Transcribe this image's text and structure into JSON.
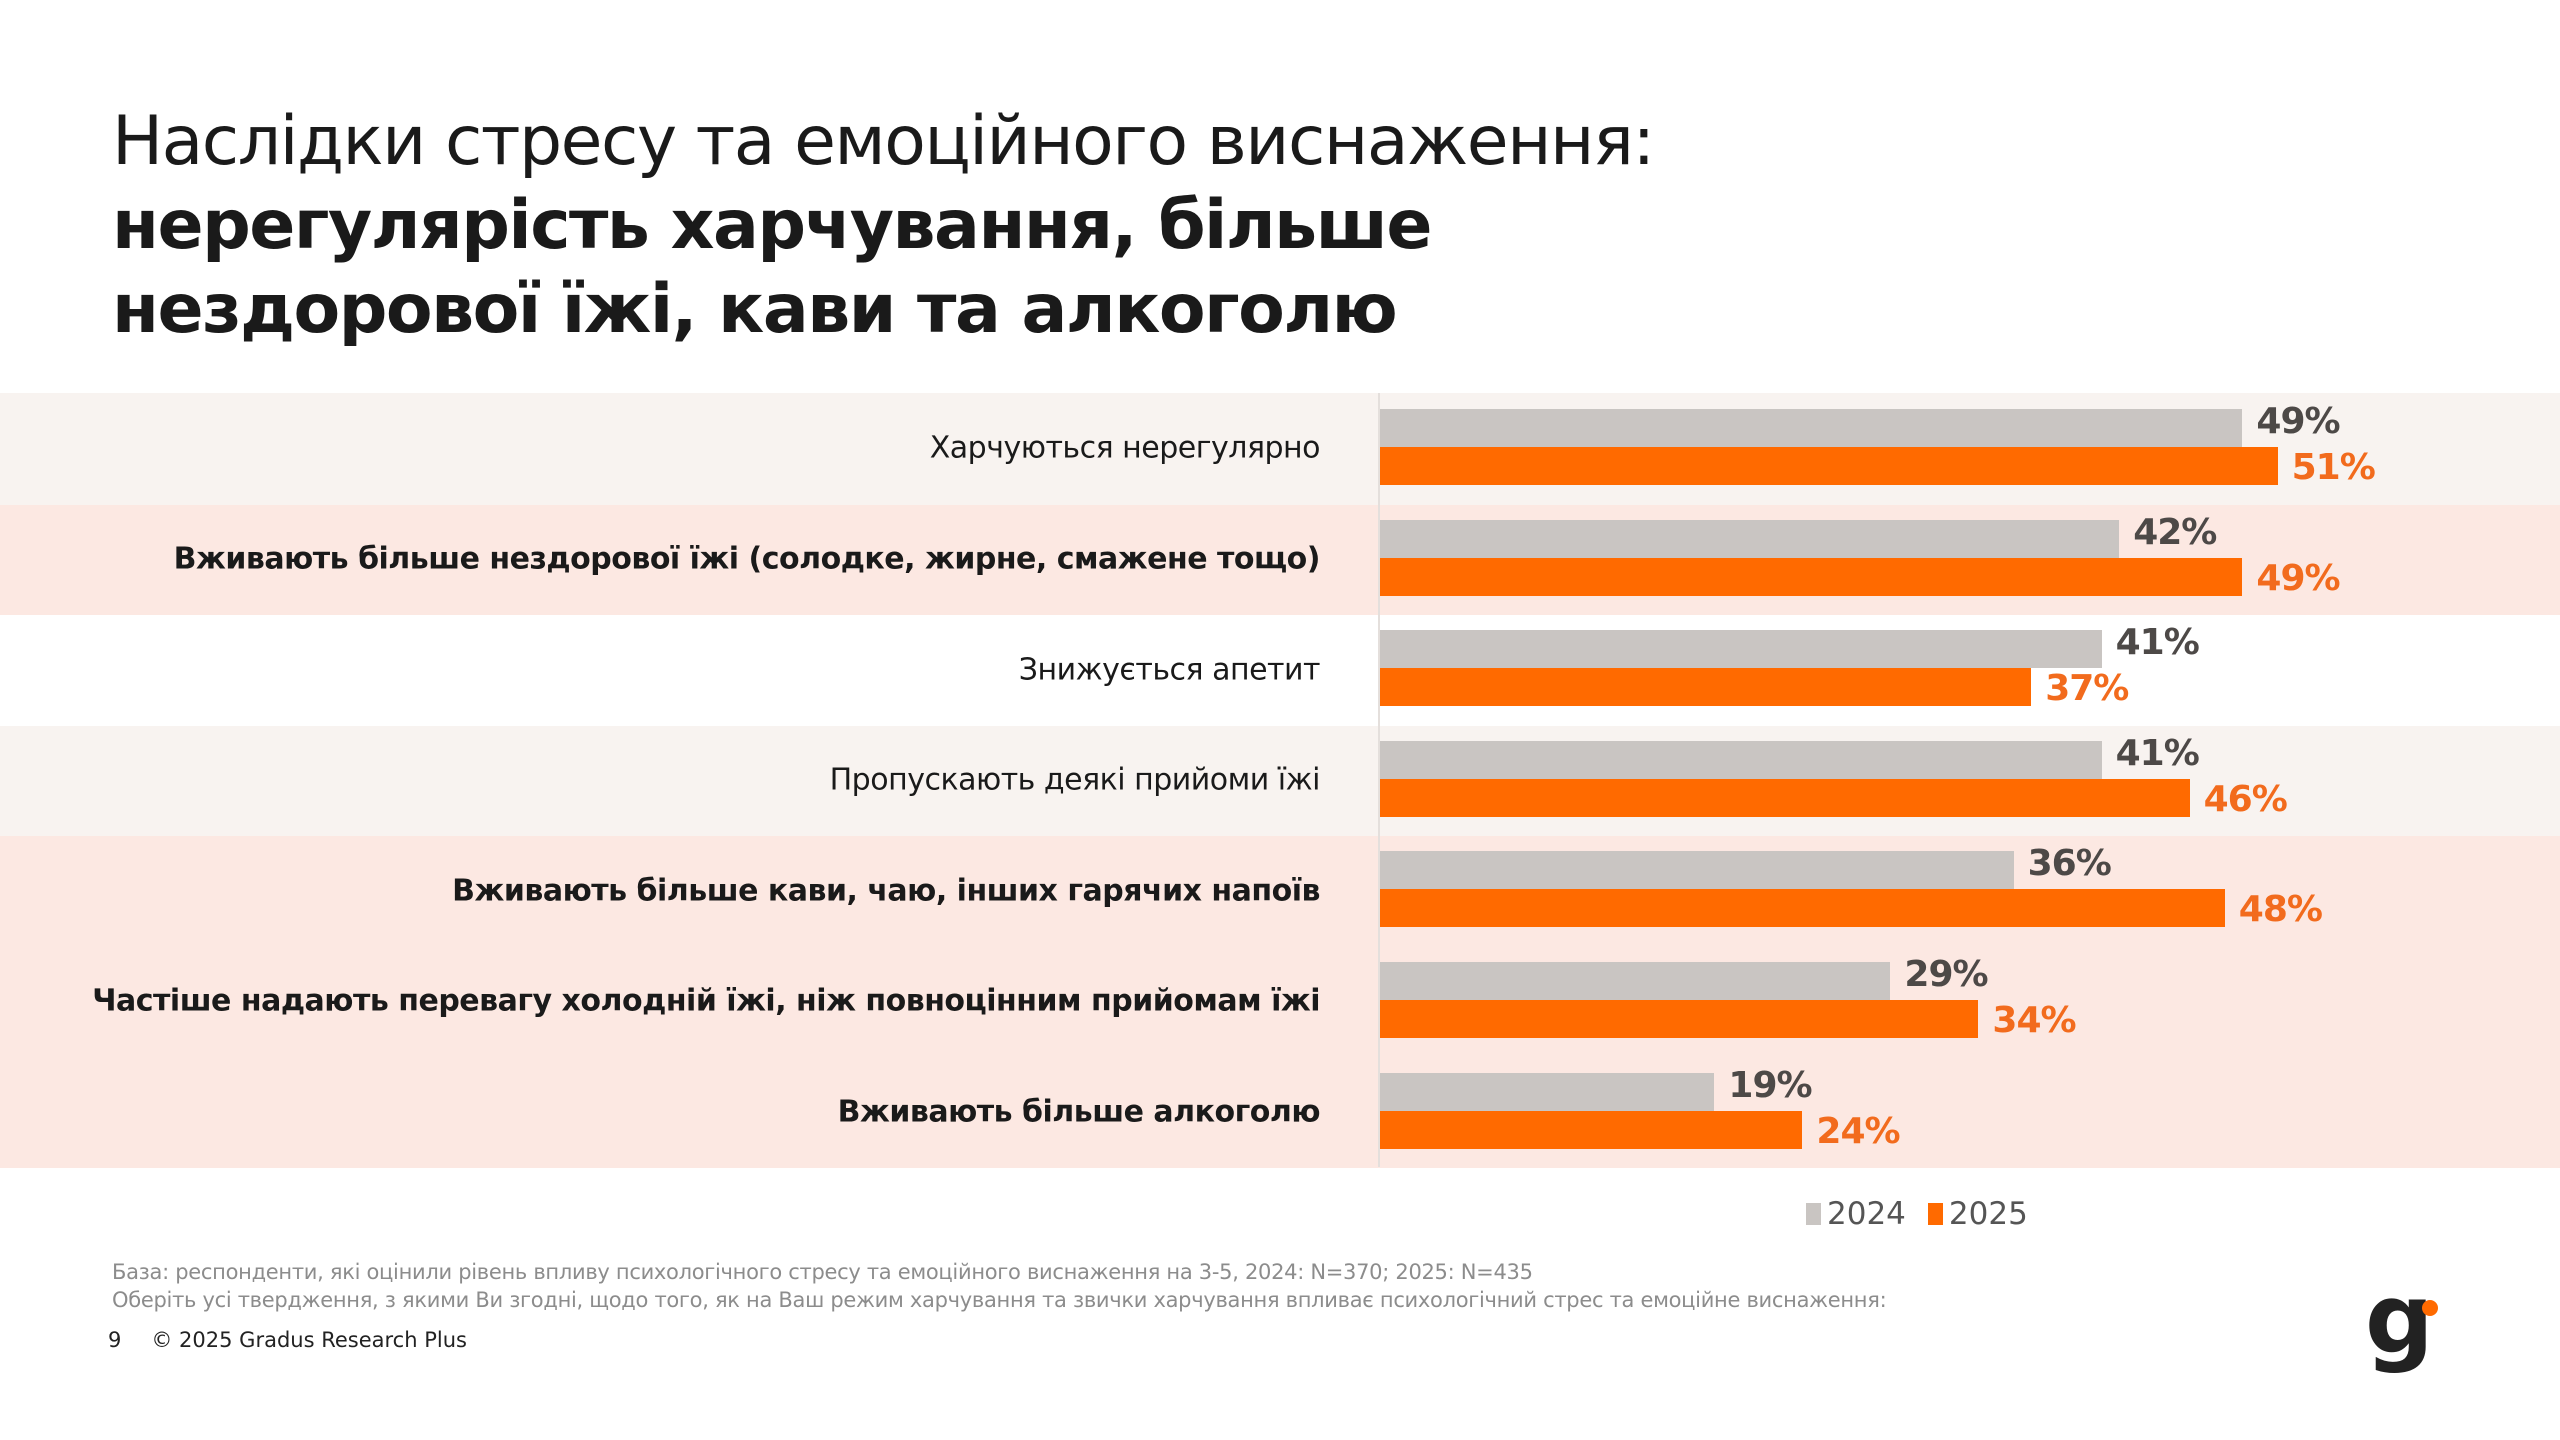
{
  "title": {
    "line1": "Наслідки стресу та емоційного виснаження:",
    "line2": "нерегулярість харчування, більше",
    "line3": "нездорової їжі, кави та алкоголю"
  },
  "chart_data": {
    "type": "bar",
    "orientation": "horizontal",
    "categories": [
      "Харчуються нерегулярно",
      "Вживають більше нездорової їжі (солодке, жирне, смажене тощо)",
      "Знижується апетит",
      "Пропускають деякі прийоми їжі",
      "Вживають більше кави, чаю, інших гарячих напоїв",
      "Частіше надають перевагу холодній їжі, ніж повноцінним прийомам їжі",
      "Вживають більше алкоголю"
    ],
    "bold_categories": [
      false,
      true,
      false,
      false,
      true,
      true,
      true
    ],
    "row_backgrounds": [
      "#f8f3f0",
      "#fce8e2",
      "#ffffff",
      "#f8f3f0",
      "#fce8e2",
      "#fce8e2",
      "#fce8e2"
    ],
    "series": [
      {
        "name": "2024",
        "values": [
          49,
          42,
          41,
          41,
          36,
          29,
          19
        ],
        "labels": [
          "49%",
          "42%",
          "41%",
          "41%",
          "36%",
          "29%",
          "19%"
        ],
        "color": "#c9c5c2",
        "label_color": "#4d4947"
      },
      {
        "name": "2025",
        "values": [
          51,
          49,
          37,
          46,
          48,
          34,
          24
        ],
        "labels": [
          "51%",
          "49%",
          "37%",
          "46%",
          "48%",
          "34%",
          "24%"
        ],
        "color": "#ff6a00",
        "label_color": "#f26b1d"
      }
    ],
    "xlim": [
      0,
      100
    ],
    "unit": "%",
    "legend_position": "bottom-right",
    "grid": false
  },
  "legend": {
    "items": [
      "2024",
      "2025"
    ]
  },
  "notes": {
    "base": "База: респонденти, які оцінили рівень впливу психологічного стресу та емоційного виснаження на 3-5, 2024: N=370; 2025: N=435",
    "question": "Оберіть усі твердження, з якими Ви згодні, щодо того, як на Ваш режим харчування та звички харчування впливає психологічний стрес та емоційне виснаження:"
  },
  "footer": {
    "page": "9",
    "copyright": "© 2025 Gradus Research Plus"
  },
  "logo": {
    "text": "g",
    "dot_color": "#ff6a00"
  }
}
